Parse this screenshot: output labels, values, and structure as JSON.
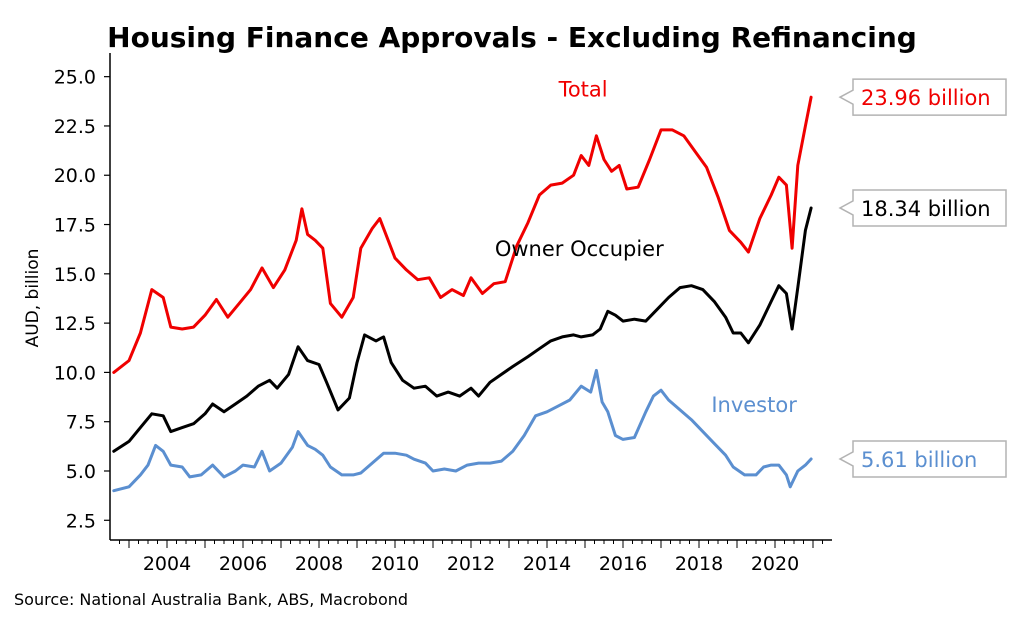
{
  "chart_data": {
    "type": "line",
    "title": "Housing Finance Approvals - Excluding Refinancing",
    "ylabel": "AUD, billion",
    "xlabel": "",
    "source": "Source: National Australia Bank, ABS, Macrobond",
    "xlim": [
      2002.5,
      2021.5
    ],
    "ylim": [
      1.5,
      26.2
    ],
    "y_ticks": [
      "2.5",
      "5.0",
      "7.5",
      "10.0",
      "12.5",
      "15.0",
      "17.5",
      "20.0",
      "22.5",
      "25.0"
    ],
    "x_ticks": [
      "2004",
      "2006",
      "2008",
      "2010",
      "2012",
      "2014",
      "2016",
      "2018",
      "2020"
    ],
    "grid": false,
    "series": [
      {
        "name": "Total",
        "color": "#f00000",
        "end_label": "23.96 billion",
        "points": [
          [
            2002.6,
            10.0
          ],
          [
            2003.0,
            10.6
          ],
          [
            2003.3,
            12.0
          ],
          [
            2003.6,
            14.2
          ],
          [
            2003.9,
            13.8
          ],
          [
            2004.1,
            12.3
          ],
          [
            2004.4,
            12.2
          ],
          [
            2004.7,
            12.3
          ],
          [
            2005.0,
            12.9
          ],
          [
            2005.3,
            13.7
          ],
          [
            2005.6,
            12.8
          ],
          [
            2005.9,
            13.5
          ],
          [
            2006.2,
            14.2
          ],
          [
            2006.5,
            15.3
          ],
          [
            2006.8,
            14.3
          ],
          [
            2007.1,
            15.2
          ],
          [
            2007.4,
            16.7
          ],
          [
            2007.55,
            18.3
          ],
          [
            2007.7,
            17.0
          ],
          [
            2007.9,
            16.7
          ],
          [
            2008.1,
            16.3
          ],
          [
            2008.3,
            13.5
          ],
          [
            2008.6,
            12.8
          ],
          [
            2008.9,
            13.8
          ],
          [
            2009.1,
            16.3
          ],
          [
            2009.4,
            17.3
          ],
          [
            2009.6,
            17.8
          ],
          [
            2009.8,
            16.8
          ],
          [
            2010.0,
            15.8
          ],
          [
            2010.3,
            15.2
          ],
          [
            2010.6,
            14.7
          ],
          [
            2010.9,
            14.8
          ],
          [
            2011.2,
            13.8
          ],
          [
            2011.5,
            14.2
          ],
          [
            2011.8,
            13.9
          ],
          [
            2012.0,
            14.8
          ],
          [
            2012.3,
            14.0
          ],
          [
            2012.6,
            14.5
          ],
          [
            2012.9,
            14.6
          ],
          [
            2013.2,
            16.4
          ],
          [
            2013.5,
            17.6
          ],
          [
            2013.8,
            19.0
          ],
          [
            2014.1,
            19.5
          ],
          [
            2014.4,
            19.6
          ],
          [
            2014.7,
            20.0
          ],
          [
            2014.9,
            21.0
          ],
          [
            2015.1,
            20.5
          ],
          [
            2015.3,
            22.0
          ],
          [
            2015.5,
            20.8
          ],
          [
            2015.7,
            20.2
          ],
          [
            2015.9,
            20.5
          ],
          [
            2016.1,
            19.3
          ],
          [
            2016.4,
            19.4
          ],
          [
            2016.7,
            20.8
          ],
          [
            2017.0,
            22.3
          ],
          [
            2017.3,
            22.3
          ],
          [
            2017.6,
            22.0
          ],
          [
            2017.9,
            21.2
          ],
          [
            2018.2,
            20.4
          ],
          [
            2018.5,
            18.9
          ],
          [
            2018.8,
            17.2
          ],
          [
            2019.1,
            16.6
          ],
          [
            2019.3,
            16.1
          ],
          [
            2019.6,
            17.8
          ],
          [
            2019.9,
            19.0
          ],
          [
            2020.1,
            19.9
          ],
          [
            2020.3,
            19.5
          ],
          [
            2020.45,
            16.3
          ],
          [
            2020.6,
            20.5
          ],
          [
            2020.8,
            22.5
          ],
          [
            2020.95,
            23.96
          ]
        ]
      },
      {
        "name": "Owner Occupier",
        "color": "#000000",
        "end_label": "18.34 billion",
        "points": [
          [
            2002.6,
            6.0
          ],
          [
            2003.0,
            6.5
          ],
          [
            2003.3,
            7.2
          ],
          [
            2003.6,
            7.9
          ],
          [
            2003.9,
            7.8
          ],
          [
            2004.1,
            7.0
          ],
          [
            2004.4,
            7.2
          ],
          [
            2004.7,
            7.4
          ],
          [
            2005.0,
            7.9
          ],
          [
            2005.2,
            8.4
          ],
          [
            2005.5,
            8.0
          ],
          [
            2005.8,
            8.4
          ],
          [
            2006.1,
            8.8
          ],
          [
            2006.4,
            9.3
          ],
          [
            2006.7,
            9.6
          ],
          [
            2006.9,
            9.2
          ],
          [
            2007.2,
            9.9
          ],
          [
            2007.45,
            11.3
          ],
          [
            2007.7,
            10.6
          ],
          [
            2008.0,
            10.4
          ],
          [
            2008.2,
            9.5
          ],
          [
            2008.5,
            8.1
          ],
          [
            2008.8,
            8.7
          ],
          [
            2009.0,
            10.5
          ],
          [
            2009.2,
            11.9
          ],
          [
            2009.5,
            11.6
          ],
          [
            2009.7,
            11.8
          ],
          [
            2009.9,
            10.5
          ],
          [
            2010.2,
            9.6
          ],
          [
            2010.5,
            9.2
          ],
          [
            2010.8,
            9.3
          ],
          [
            2011.1,
            8.8
          ],
          [
            2011.4,
            9.0
          ],
          [
            2011.7,
            8.8
          ],
          [
            2012.0,
            9.2
          ],
          [
            2012.2,
            8.8
          ],
          [
            2012.5,
            9.5
          ],
          [
            2012.8,
            9.9
          ],
          [
            2013.1,
            10.3
          ],
          [
            2013.5,
            10.8
          ],
          [
            2013.8,
            11.2
          ],
          [
            2014.1,
            11.6
          ],
          [
            2014.4,
            11.8
          ],
          [
            2014.7,
            11.9
          ],
          [
            2014.9,
            11.8
          ],
          [
            2015.2,
            11.9
          ],
          [
            2015.4,
            12.2
          ],
          [
            2015.6,
            13.1
          ],
          [
            2015.8,
            12.9
          ],
          [
            2016.0,
            12.6
          ],
          [
            2016.3,
            12.7
          ],
          [
            2016.6,
            12.6
          ],
          [
            2016.9,
            13.2
          ],
          [
            2017.2,
            13.8
          ],
          [
            2017.5,
            14.3
          ],
          [
            2017.8,
            14.4
          ],
          [
            2018.1,
            14.2
          ],
          [
            2018.4,
            13.6
          ],
          [
            2018.7,
            12.8
          ],
          [
            2018.9,
            12.0
          ],
          [
            2019.1,
            12.0
          ],
          [
            2019.3,
            11.5
          ],
          [
            2019.6,
            12.4
          ],
          [
            2019.9,
            13.6
          ],
          [
            2020.1,
            14.4
          ],
          [
            2020.3,
            14.0
          ],
          [
            2020.45,
            12.2
          ],
          [
            2020.6,
            14.3
          ],
          [
            2020.8,
            17.2
          ],
          [
            2020.95,
            18.34
          ]
        ]
      },
      {
        "name": "Investor",
        "color": "#5b8fd0",
        "end_label": "5.61 billion",
        "points": [
          [
            2002.6,
            4.0
          ],
          [
            2003.0,
            4.2
          ],
          [
            2003.3,
            4.8
          ],
          [
            2003.5,
            5.3
          ],
          [
            2003.7,
            6.3
          ],
          [
            2003.9,
            6.0
          ],
          [
            2004.1,
            5.3
          ],
          [
            2004.4,
            5.2
          ],
          [
            2004.6,
            4.7
          ],
          [
            2004.9,
            4.8
          ],
          [
            2005.2,
            5.3
          ],
          [
            2005.5,
            4.7
          ],
          [
            2005.8,
            5.0
          ],
          [
            2006.0,
            5.3
          ],
          [
            2006.3,
            5.2
          ],
          [
            2006.5,
            6.0
          ],
          [
            2006.7,
            5.0
          ],
          [
            2007.0,
            5.4
          ],
          [
            2007.3,
            6.2
          ],
          [
            2007.45,
            7.0
          ],
          [
            2007.7,
            6.3
          ],
          [
            2007.9,
            6.1
          ],
          [
            2008.1,
            5.8
          ],
          [
            2008.3,
            5.2
          ],
          [
            2008.6,
            4.8
          ],
          [
            2008.9,
            4.8
          ],
          [
            2009.1,
            4.9
          ],
          [
            2009.4,
            5.4
          ],
          [
            2009.7,
            5.9
          ],
          [
            2010.0,
            5.9
          ],
          [
            2010.3,
            5.8
          ],
          [
            2010.5,
            5.6
          ],
          [
            2010.8,
            5.4
          ],
          [
            2011.0,
            5.0
          ],
          [
            2011.3,
            5.1
          ],
          [
            2011.6,
            5.0
          ],
          [
            2011.9,
            5.3
          ],
          [
            2012.2,
            5.4
          ],
          [
            2012.5,
            5.4
          ],
          [
            2012.8,
            5.5
          ],
          [
            2013.1,
            6.0
          ],
          [
            2013.4,
            6.8
          ],
          [
            2013.7,
            7.8
          ],
          [
            2014.0,
            8.0
          ],
          [
            2014.3,
            8.3
          ],
          [
            2014.6,
            8.6
          ],
          [
            2014.9,
            9.3
          ],
          [
            2015.15,
            9.0
          ],
          [
            2015.3,
            10.1
          ],
          [
            2015.45,
            8.5
          ],
          [
            2015.6,
            8.0
          ],
          [
            2015.8,
            6.8
          ],
          [
            2016.0,
            6.6
          ],
          [
            2016.3,
            6.7
          ],
          [
            2016.6,
            8.0
          ],
          [
            2016.8,
            8.8
          ],
          [
            2017.0,
            9.1
          ],
          [
            2017.2,
            8.6
          ],
          [
            2017.5,
            8.1
          ],
          [
            2017.8,
            7.6
          ],
          [
            2018.1,
            7.0
          ],
          [
            2018.4,
            6.4
          ],
          [
            2018.7,
            5.8
          ],
          [
            2018.9,
            5.2
          ],
          [
            2019.2,
            4.8
          ],
          [
            2019.5,
            4.8
          ],
          [
            2019.7,
            5.2
          ],
          [
            2019.9,
            5.3
          ],
          [
            2020.1,
            5.3
          ],
          [
            2020.3,
            4.8
          ],
          [
            2020.4,
            4.2
          ],
          [
            2020.6,
            5.0
          ],
          [
            2020.8,
            5.3
          ],
          [
            2020.95,
            5.61
          ]
        ]
      }
    ],
    "annotations": [
      {
        "text": "Total",
        "color": "#f00000",
        "x": 2014.95,
        "y": 24.0
      },
      {
        "text": "Owner Occupier",
        "color": "#000000",
        "x": 2014.85,
        "y": 15.9
      },
      {
        "text": "Investor",
        "color": "#5b8fd0",
        "x": 2019.45,
        "y": 8.0
      }
    ]
  }
}
